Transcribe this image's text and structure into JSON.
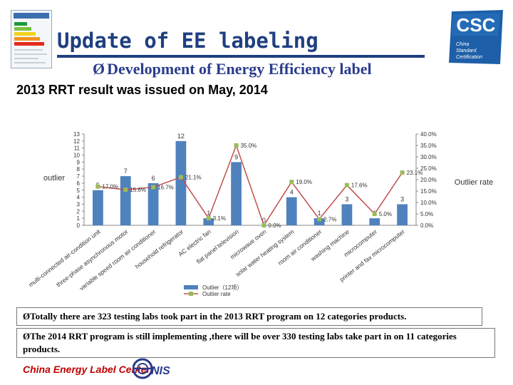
{
  "header": {
    "title": "Update of EE labeling",
    "subtitle_arrow": "Ø",
    "subtitle": "Development of Energy Efficiency label",
    "logo_text": "CSC",
    "logo_subtext": [
      "China",
      "Standard",
      "Certification"
    ]
  },
  "result_line": "2013 RRT result was issued on May, 2014",
  "chart_data": {
    "type": "bar",
    "categories": [
      "multi-connected air-condition unit",
      "three-phase asynchronous motor",
      "variable speed room air conditioner",
      "household refrigerator",
      "AC electric fan",
      "flat panel television",
      "microwave oven",
      "solar water heating system",
      "room air conditioner",
      "washing machine",
      "microcomputer",
      "printer and fax microcomputer"
    ],
    "series": [
      {
        "name": "Outlier（12项）",
        "axis": "left",
        "values": [
          5,
          7,
          6,
          12,
          1,
          9,
          0,
          4,
          1,
          3,
          1,
          3
        ],
        "data_labels": [
          "5",
          "7",
          "6",
          "12",
          "1",
          "9",
          "0",
          "4",
          "1",
          "3",
          "1",
          "3"
        ],
        "color": "#4f81bd"
      },
      {
        "name": "Outlier rate",
        "axis": "right",
        "values": [
          17.0,
          15.6,
          16.7,
          21.1,
          3.1,
          35.0,
          0.0,
          19.0,
          2.7,
          17.6,
          5.0,
          23.1
        ],
        "data_labels": [
          "17.0%",
          "15.6%",
          "16.7%",
          "21.1%",
          "3.1%",
          "35.0%",
          "0.0%",
          "19.0%",
          "2.7%",
          "17.6%",
          "5.0%",
          "23.1%"
        ],
        "color": "#c0504d",
        "marker_color": "#9bbb59"
      }
    ],
    "ylabel": "outlier",
    "y2label": "Outlier  rate",
    "ylim": [
      0,
      13
    ],
    "y2lim": [
      0,
      40
    ],
    "yticks": [
      "0",
      "1",
      "2",
      "3",
      "4",
      "5",
      "6",
      "7",
      "8",
      "9",
      "10",
      "11",
      "12",
      "13"
    ],
    "y2ticks": [
      "0.0%",
      "5.0%",
      "10.0%",
      "15.0%",
      "20.0%",
      "25.0%",
      "30.0%",
      "35.0%",
      "40.0%"
    ],
    "grid": false,
    "legend": "bottom"
  },
  "notes": [
    {
      "arrow": "Ø",
      "text": "Totally there are 323 testing labs took part in the 2013  RRT program on 12 categories products."
    },
    {
      "arrow": "Ø",
      "text": "The 2014 RRT program is still implementing ,there will be over 330 testing labs take part in on 11 categories products."
    }
  ],
  "footer": {
    "text": "China Energy Label Center,",
    "logo_text": "NIS"
  }
}
